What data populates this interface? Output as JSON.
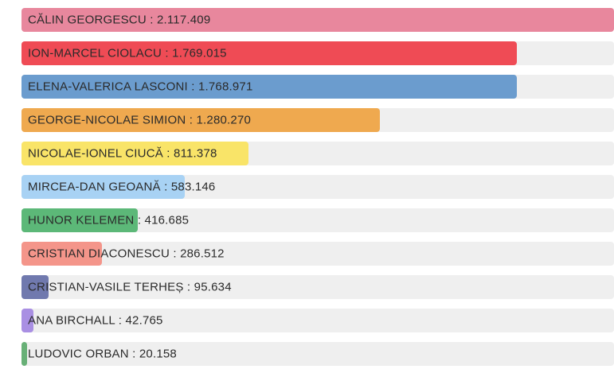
{
  "page": {
    "background": "#ffffff",
    "track_color": "#efefef",
    "text_color": "#2b2b2b"
  },
  "chart_data": {
    "type": "bar",
    "orientation": "horizontal",
    "title": "",
    "xlabel": "",
    "ylabel": "",
    "xlim": [
      0,
      2117409
    ],
    "grid": false,
    "axes_visible": false,
    "value_labels_inline": true,
    "separator": " : ",
    "max_value": 2117409,
    "track_color": "#efefef",
    "categories": [
      "CĂLIN GEORGESCU",
      "ION-MARCEL CIOLACU",
      "ELENA-VALERICA LASCONI",
      "GEORGE-NICOLAE SIMION",
      "NICOLAE-IONEL CIUCĂ",
      "MIRCEA-DAN GEOANĂ",
      "HUNOR KELEMEN",
      "CRISTIAN DIACONESCU",
      "CRISTIAN-VASILE TERHEȘ",
      "ANA BIRCHALL",
      "LUDOVIC ORBAN"
    ],
    "values": [
      2117409,
      1769015,
      1768971,
      1280270,
      811378,
      583146,
      416685,
      286512,
      95634,
      42765,
      20158
    ],
    "bars": [
      {
        "name": "CĂLIN GEORGESCU",
        "value": 2117409,
        "value_label": "2.117.409",
        "color": "#e8879d"
      },
      {
        "name": "ION-MARCEL CIOLACU",
        "value": 1769015,
        "value_label": "1.769.015",
        "color": "#ef4b55"
      },
      {
        "name": "ELENA-VALERICA LASCONI",
        "value": 1768971,
        "value_label": "1.768.971",
        "color": "#6b9cce"
      },
      {
        "name": "GEORGE-NICOLAE SIMION",
        "value": 1280270,
        "value_label": "1.280.270",
        "color": "#efa94f"
      },
      {
        "name": "NICOLAE-IONEL CIUCĂ",
        "value": 811378,
        "value_label": "811.378",
        "color": "#f9e468"
      },
      {
        "name": "MIRCEA-DAN GEOANĂ",
        "value": 583146,
        "value_label": "583.146",
        "color": "#a8d2f4"
      },
      {
        "name": "HUNOR KELEMEN",
        "value": 416685,
        "value_label": "416.685",
        "color": "#5cb878"
      },
      {
        "name": "CRISTIAN DIACONESCU",
        "value": 286512,
        "value_label": "286.512",
        "color": "#f4958a"
      },
      {
        "name": "CRISTIAN-VASILE TERHEȘ",
        "value": 95634,
        "value_label": "95.634",
        "color": "#7079ae"
      },
      {
        "name": "ANA BIRCHALL",
        "value": 42765,
        "value_label": "42.765",
        "color": "#a98fe3"
      },
      {
        "name": "LUDOVIC ORBAN",
        "value": 20158,
        "value_label": "20.158",
        "color": "#68b077"
      }
    ]
  }
}
